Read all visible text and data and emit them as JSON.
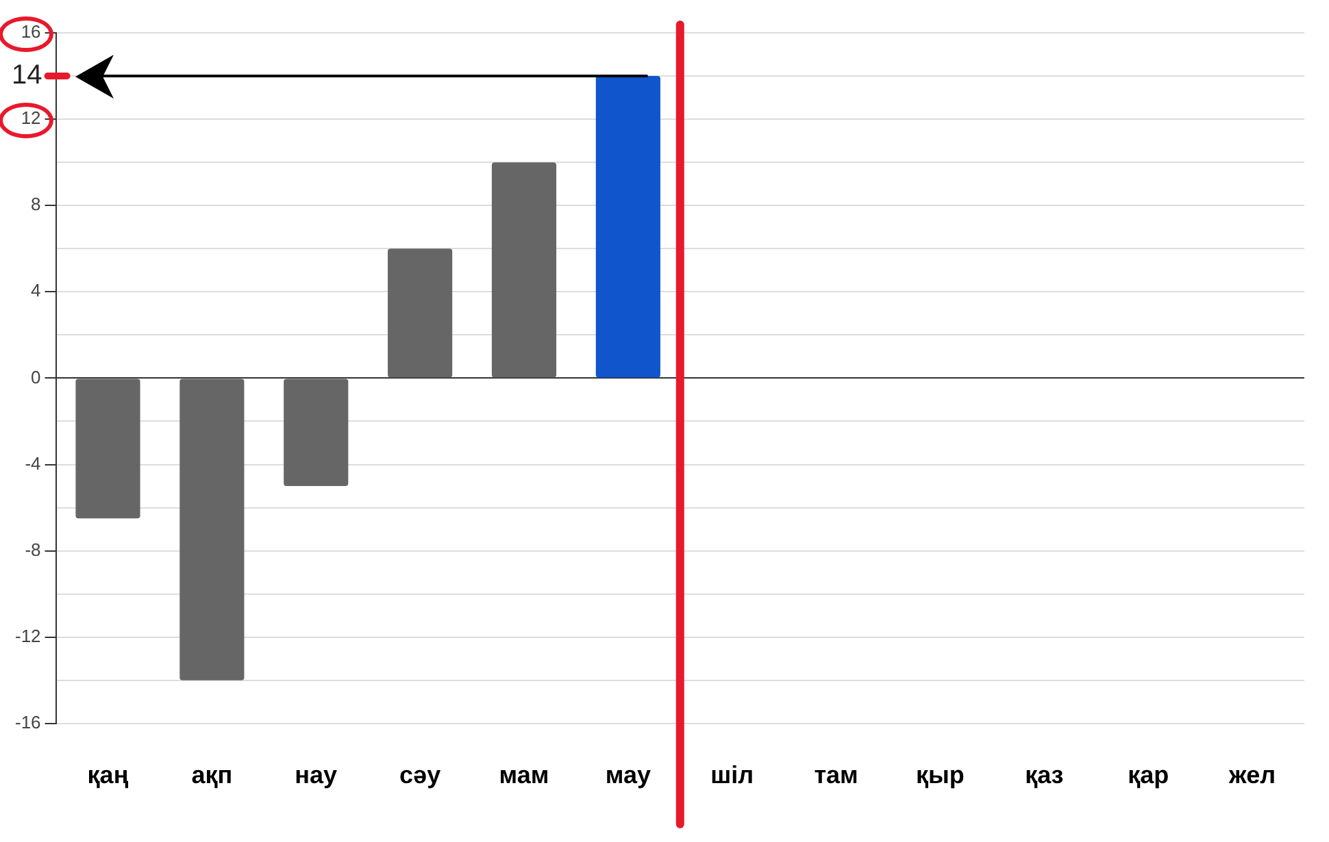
{
  "chart_data": {
    "type": "bar",
    "categories": [
      "қаң",
      "ақп",
      "нау",
      "сәу",
      "мам",
      "мау",
      "шіл",
      "там",
      "қыр",
      "қаз",
      "қар",
      "жел"
    ],
    "values": [
      -6.5,
      -14,
      -5,
      6,
      10,
      14,
      null,
      null,
      null,
      null,
      null,
      null
    ],
    "colors": [
      "#666666",
      "#666666",
      "#666666",
      "#666666",
      "#666666",
      "#1155cc",
      "#666666",
      "#666666",
      "#666666",
      "#666666",
      "#666666",
      "#666666"
    ],
    "ylim": [
      -16,
      16
    ],
    "yticks": [
      -16,
      {
        "value": -14,
        "label": null
      },
      -12,
      {
        "value": -10,
        "label": null
      },
      -8,
      {
        "value": -6,
        "label": null
      },
      -4,
      {
        "value": -2,
        "label": null
      },
      0,
      {
        "value": 2,
        "label": null
      },
      4,
      {
        "value": 6,
        "label": null
      },
      8,
      {
        "value": 10,
        "label": null
      },
      12,
      {
        "value": 14,
        "label": null
      },
      16
    ],
    "grid": true,
    "ref_lines": [
      {
        "axis": "y",
        "value": 14,
        "label": "14",
        "color": "#000000"
      },
      {
        "axis": "x",
        "value": "мау",
        "color": "#e8192c"
      }
    ]
  }
}
